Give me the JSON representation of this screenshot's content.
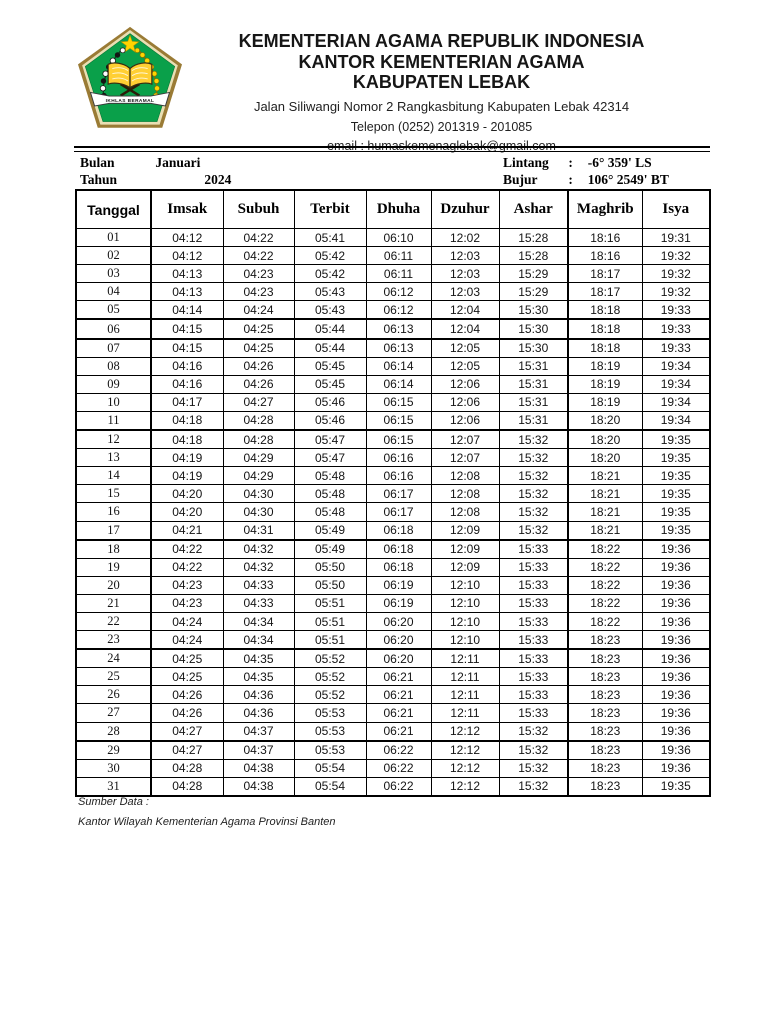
{
  "letterhead": {
    "line1": "KEMENTERIAN AGAMA REPUBLIK INDONESIA",
    "line2": "KANTOR KEMENTERIAN AGAMA",
    "line3": "KABUPATEN LEBAK",
    "address": "Jalan Siliwangi Nomor 2 Rangkasbitung Kabupaten Lebak 42314",
    "phone": "Telepon (0252) 201319 - 201085",
    "email": "email : humaskemenaglebak@gmail.com",
    "logo": {
      "icon": "kemenag-emblem-icon",
      "motto": "IKHLAS BERAMAL",
      "colors": {
        "green": "#0a9f47",
        "gold": "#9a7b35",
        "star_yellow": "#ffd400",
        "ribbon": "#ffffff"
      }
    }
  },
  "meta": {
    "bulan_label": "Bulan",
    "bulan_value": "Januari",
    "tahun_label": "Tahun",
    "tahun_value": "2024",
    "lintang_label": "Lintang",
    "lintang_colon": ":",
    "lintang_value": "-6° 359' LS",
    "bujur_label": "Bujur",
    "bujur_colon": ":",
    "bujur_value": "106° 2549' BT"
  },
  "table": {
    "headers": [
      "Tanggal",
      "Imsak",
      "Subuh",
      "Terbit",
      "Dhuha",
      "Dzuhur",
      "Ashar",
      "Maghrib",
      "Isya"
    ],
    "rows": [
      [
        "01",
        "04:12",
        "04:22",
        "05:41",
        "06:10",
        "12:02",
        "15:28",
        "18:16",
        "19:31"
      ],
      [
        "02",
        "04:12",
        "04:22",
        "05:42",
        "06:11",
        "12:03",
        "15:28",
        "18:16",
        "19:32"
      ],
      [
        "03",
        "04:13",
        "04:23",
        "05:42",
        "06:11",
        "12:03",
        "15:29",
        "18:17",
        "19:32"
      ],
      [
        "04",
        "04:13",
        "04:23",
        "05:43",
        "06:12",
        "12:03",
        "15:29",
        "18:17",
        "19:32"
      ],
      [
        "05",
        "04:14",
        "04:24",
        "05:43",
        "06:12",
        "12:04",
        "15:30",
        "18:18",
        "19:33"
      ],
      [
        "06",
        "04:15",
        "04:25",
        "05:44",
        "06:13",
        "12:04",
        "15:30",
        "18:18",
        "19:33"
      ],
      [
        "07",
        "04:15",
        "04:25",
        "05:44",
        "06:13",
        "12:05",
        "15:30",
        "18:18",
        "19:33"
      ],
      [
        "08",
        "04:16",
        "04:26",
        "05:45",
        "06:14",
        "12:05",
        "15:31",
        "18:19",
        "19:34"
      ],
      [
        "09",
        "04:16",
        "04:26",
        "05:45",
        "06:14",
        "12:06",
        "15:31",
        "18:19",
        "19:34"
      ],
      [
        "10",
        "04:17",
        "04:27",
        "05:46",
        "06:15",
        "12:06",
        "15:31",
        "18:19",
        "19:34"
      ],
      [
        "11",
        "04:18",
        "04:28",
        "05:46",
        "06:15",
        "12:06",
        "15:31",
        "18:20",
        "19:34"
      ],
      [
        "12",
        "04:18",
        "04:28",
        "05:47",
        "06:15",
        "12:07",
        "15:32",
        "18:20",
        "19:35"
      ],
      [
        "13",
        "04:19",
        "04:29",
        "05:47",
        "06:16",
        "12:07",
        "15:32",
        "18:20",
        "19:35"
      ],
      [
        "14",
        "04:19",
        "04:29",
        "05:48",
        "06:16",
        "12:08",
        "15:32",
        "18:21",
        "19:35"
      ],
      [
        "15",
        "04:20",
        "04:30",
        "05:48",
        "06:17",
        "12:08",
        "15:32",
        "18:21",
        "19:35"
      ],
      [
        "16",
        "04:20",
        "04:30",
        "05:48",
        "06:17",
        "12:08",
        "15:32",
        "18:21",
        "19:35"
      ],
      [
        "17",
        "04:21",
        "04:31",
        "05:49",
        "06:18",
        "12:09",
        "15:32",
        "18:21",
        "19:35"
      ],
      [
        "18",
        "04:22",
        "04:32",
        "05:49",
        "06:18",
        "12:09",
        "15:33",
        "18:22",
        "19:36"
      ],
      [
        "19",
        "04:22",
        "04:32",
        "05:50",
        "06:18",
        "12:09",
        "15:33",
        "18:22",
        "19:36"
      ],
      [
        "20",
        "04:23",
        "04:33",
        "05:50",
        "06:19",
        "12:10",
        "15:33",
        "18:22",
        "19:36"
      ],
      [
        "21",
        "04:23",
        "04:33",
        "05:51",
        "06:19",
        "12:10",
        "15:33",
        "18:22",
        "19:36"
      ],
      [
        "22",
        "04:24",
        "04:34",
        "05:51",
        "06:20",
        "12:10",
        "15:33",
        "18:22",
        "19:36"
      ],
      [
        "23",
        "04:24",
        "04:34",
        "05:51",
        "06:20",
        "12:10",
        "15:33",
        "18:23",
        "19:36"
      ],
      [
        "24",
        "04:25",
        "04:35",
        "05:52",
        "06:20",
        "12:11",
        "15:33",
        "18:23",
        "19:36"
      ],
      [
        "25",
        "04:25",
        "04:35",
        "05:52",
        "06:21",
        "12:11",
        "15:33",
        "18:23",
        "19:36"
      ],
      [
        "26",
        "04:26",
        "04:36",
        "05:52",
        "06:21",
        "12:11",
        "15:33",
        "18:23",
        "19:36"
      ],
      [
        "27",
        "04:26",
        "04:36",
        "05:53",
        "06:21",
        "12:11",
        "15:33",
        "18:23",
        "19:36"
      ],
      [
        "28",
        "04:27",
        "04:37",
        "05:53",
        "06:21",
        "12:12",
        "15:32",
        "18:23",
        "19:36"
      ],
      [
        "29",
        "04:27",
        "04:37",
        "05:53",
        "06:22",
        "12:12",
        "15:32",
        "18:23",
        "19:36"
      ],
      [
        "30",
        "04:28",
        "04:38",
        "05:54",
        "06:22",
        "12:12",
        "15:32",
        "18:23",
        "19:36"
      ],
      [
        "31",
        "04:28",
        "04:38",
        "05:54",
        "06:22",
        "12:12",
        "15:32",
        "18:23",
        "19:35"
      ]
    ]
  },
  "footer": {
    "sumber_label": "Sumber Data :",
    "sumber_value": "Kantor Wilayah Kementerian Agama Provinsi Banten"
  }
}
